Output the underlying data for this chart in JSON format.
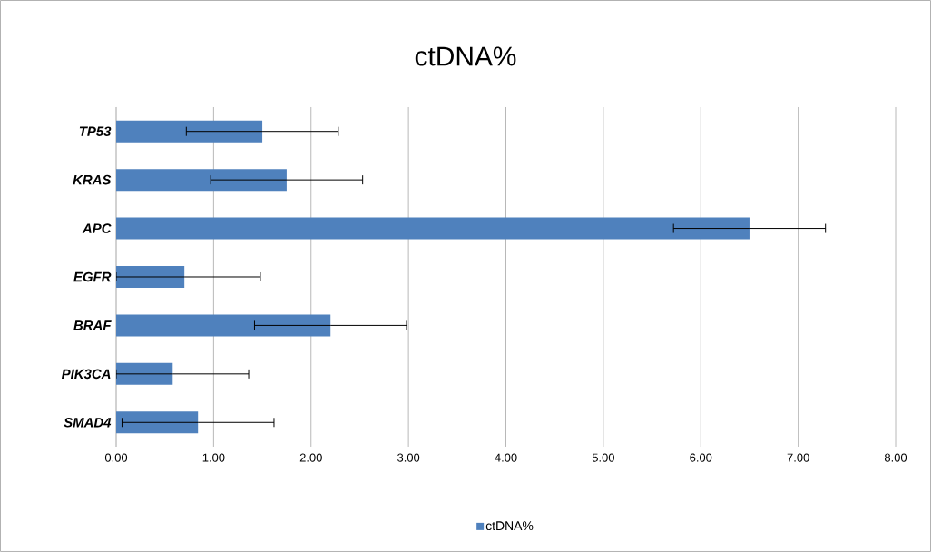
{
  "chart_data": {
    "type": "bar",
    "orientation": "horizontal",
    "title": "ctDNA%",
    "categories": [
      "TP53",
      "KRAS",
      "APC",
      "EGFR",
      "BRAF",
      "PIK3CA",
      "SMAD4"
    ],
    "series": [
      {
        "name": "ctDNA%",
        "color": "#4f81bd",
        "values": [
          1.5,
          1.75,
          6.5,
          0.7,
          2.2,
          0.58,
          0.84
        ],
        "errors": [
          0.78,
          0.78,
          0.78,
          [
            0,
            1.48
          ],
          0.78,
          [
            0,
            1.36
          ],
          0.78
        ]
      }
    ],
    "xlim": [
      0,
      8
    ],
    "xticks": [
      {
        "value": 0,
        "label": "0.00"
      },
      {
        "value": 1,
        "label": "1.00"
      },
      {
        "value": 2,
        "label": "2.00"
      },
      {
        "value": 3,
        "label": "3.00"
      },
      {
        "value": 4,
        "label": "4.00"
      },
      {
        "value": 5,
        "label": "5.00"
      },
      {
        "value": 6,
        "label": "6.00"
      },
      {
        "value": 7,
        "label": "7.00"
      },
      {
        "value": 8,
        "label": "8.00"
      }
    ],
    "grid": "x",
    "legend": "bottom"
  }
}
